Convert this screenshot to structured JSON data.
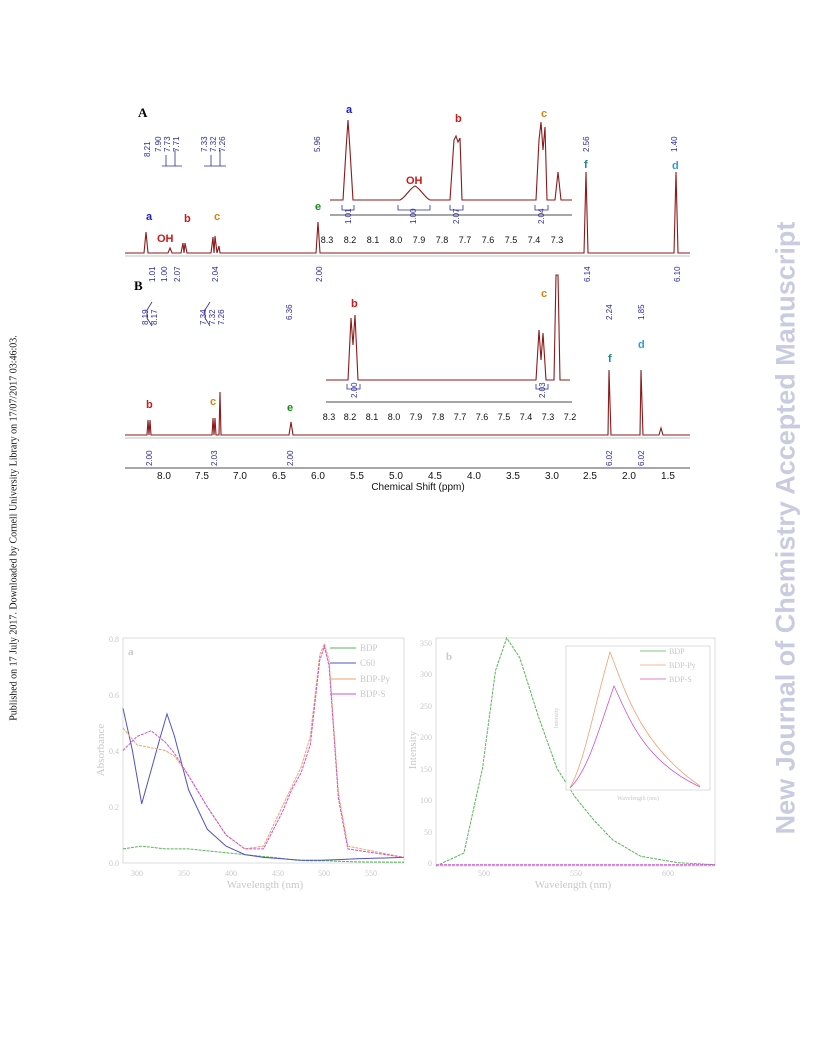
{
  "side_note": "Published on 17 July 2017. Downloaded by Cornell University Library on 17/07/2017 03:46:03.",
  "watermark": "New Journal of Chemistry Accepted Manuscript",
  "nmr": {
    "panel_a": {
      "label": "A",
      "peak_labels": [
        "8.21",
        "7.90",
        "7.73",
        "7.71",
        "7.33",
        "7.32",
        "7.26",
        "5.96",
        "2.56",
        "1.40"
      ],
      "integrals": [
        "1.01",
        "1.00",
        "2.07",
        "2.04",
        "2.00",
        "6.14",
        "6.10"
      ],
      "assignments": [
        "a",
        "OH",
        "b",
        "c",
        "e",
        "f",
        "d"
      ],
      "inset": {
        "integrals": [
          "1.01",
          "1.00",
          "2.07",
          "2.04"
        ],
        "ticks": [
          "8.3",
          "8.2",
          "8.1",
          "8.0",
          "7.9",
          "7.8",
          "7.7",
          "7.6",
          "7.5",
          "7.4",
          "7.3"
        ]
      }
    },
    "panel_b": {
      "label": "B",
      "peak_labels": [
        "8.19",
        "8.17",
        "7.34",
        "7.32",
        "7.26",
        "6.36",
        "2.24",
        "1.85"
      ],
      "integrals": [
        "2.00",
        "2.03",
        "2.00",
        "6.02",
        "6.02"
      ],
      "assignments": [
        "b",
        "c",
        "e",
        "f",
        "d"
      ],
      "inset": {
        "integrals": [
          "2.00",
          "2.03"
        ],
        "ticks": [
          "8.3",
          "8.2",
          "8.1",
          "8.0",
          "7.9",
          "7.8",
          "7.7",
          "7.6",
          "7.5",
          "7.4",
          "7.3",
          "7.2"
        ]
      }
    },
    "x_ticks": [
      "8.0",
      "7.5",
      "7.0",
      "6.5",
      "6.0",
      "5.5",
      "5.0",
      "4.5",
      "4.0",
      "3.5",
      "3.0",
      "2.5",
      "2.0",
      "1.5"
    ],
    "x_label": "Chemical Shift (ppm)"
  },
  "chart_data": [
    {
      "type": "line",
      "panel_label": "a",
      "xlabel": "Wavelength (nm)",
      "ylabel": "Absorbance",
      "x_ticks": [
        "300",
        "350",
        "400",
        "450",
        "500",
        "550"
      ],
      "y_ticks": [
        "0.0",
        "0.2",
        "0.4",
        "0.6",
        "0.8"
      ],
      "xlim": [
        290,
        590
      ],
      "ylim": [
        0,
        0.8
      ],
      "legend": [
        "BDP",
        "C60",
        "BDP-Py",
        "BDP-S"
      ],
      "series": [
        {
          "name": "BDP",
          "color": "#59b559",
          "x": [
            290,
            310,
            335,
            360,
            390,
            420,
            450,
            475,
            490,
            500,
            505,
            510,
            520,
            540,
            590
          ],
          "y": [
            0.05,
            0.06,
            0.05,
            0.05,
            0.04,
            0.03,
            0.02,
            0.01,
            0.008,
            0.008,
            0.008,
            0.008,
            0.006,
            0.004,
            0.003
          ]
        },
        {
          "name": "C60",
          "color": "#5050c8",
          "x": [
            290,
            300,
            310,
            320,
            330,
            337,
            345,
            360,
            380,
            400,
            420,
            440,
            460,
            480,
            500,
            520,
            540,
            590
          ],
          "y": [
            0.55,
            0.4,
            0.21,
            0.33,
            0.45,
            0.53,
            0.45,
            0.26,
            0.12,
            0.06,
            0.03,
            0.02,
            0.015,
            0.01,
            0.01,
            0.012,
            0.015,
            0.02
          ]
        },
        {
          "name": "BDP-Py",
          "color": "#f0a070",
          "x": [
            290,
            305,
            320,
            335,
            345,
            360,
            380,
            400,
            420,
            440,
            460,
            470,
            480,
            490,
            500,
            505,
            510,
            520,
            530,
            590
          ],
          "y": [
            0.48,
            0.42,
            0.41,
            0.4,
            0.38,
            0.31,
            0.2,
            0.1,
            0.05,
            0.06,
            0.2,
            0.27,
            0.34,
            0.45,
            0.74,
            0.78,
            0.72,
            0.25,
            0.06,
            0.02
          ]
        },
        {
          "name": "BDP-S",
          "color": "#cc55cc",
          "x": [
            290,
            305,
            320,
            335,
            345,
            360,
            380,
            400,
            420,
            440,
            460,
            470,
            480,
            490,
            500,
            505,
            510,
            520,
            530,
            590
          ],
          "y": [
            0.4,
            0.45,
            0.47,
            0.43,
            0.39,
            0.31,
            0.2,
            0.1,
            0.05,
            0.05,
            0.18,
            0.26,
            0.32,
            0.42,
            0.72,
            0.77,
            0.7,
            0.23,
            0.05,
            0.02
          ]
        }
      ]
    },
    {
      "type": "line",
      "panel_label": "b",
      "xlabel": "Wavelength (nm)",
      "ylabel": "Intensity",
      "x_ticks": [
        "500",
        "550",
        "600"
      ],
      "xlim": [
        480,
        630
      ],
      "y_ticks": [
        "0",
        "50",
        "100",
        "150",
        "200",
        "250",
        "300",
        "350"
      ],
      "ylim": [
        0,
        350
      ],
      "legend": [
        "BDP",
        "BDP-Py",
        "BDP-S"
      ],
      "series": [
        {
          "name": "BDP",
          "color": "#59b559",
          "x": [
            480,
            495,
            505,
            512,
            518,
            525,
            535,
            545,
            555,
            565,
            575,
            590,
            610,
            630
          ],
          "y": [
            0,
            20,
            150,
            300,
            350,
            320,
            230,
            150,
            105,
            70,
            40,
            15,
            5,
            2
          ]
        },
        {
          "name": "BDP-Py",
          "color": "#f0a070",
          "x": [
            480,
            630
          ],
          "y": [
            1,
            1
          ]
        },
        {
          "name": "BDP-S",
          "color": "#cc55cc",
          "x": [
            480,
            630
          ],
          "y": [
            2,
            2
          ]
        }
      ]
    }
  ],
  "emission_inset": {
    "ylabel": "Intensity",
    "xlabel": "Wavelength (nm)",
    "legend": [
      "BDP",
      "BDP-Py",
      "BDP-S"
    ]
  }
}
